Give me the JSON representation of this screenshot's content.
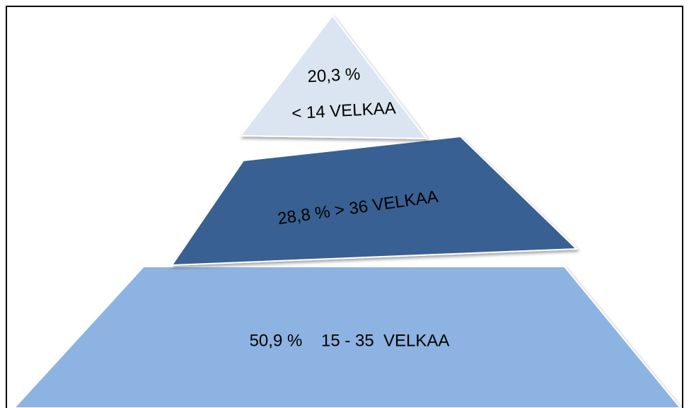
{
  "nodes": [
    {
      "label": "20,3 %",
      "sublabel": "< 14 VELKAA"
    },
    {
      "label": "28,8 % > 36 VELKAA"
    },
    {
      "label": "50,9 %    15 - 35  VELKAA"
    }
  ]
}
